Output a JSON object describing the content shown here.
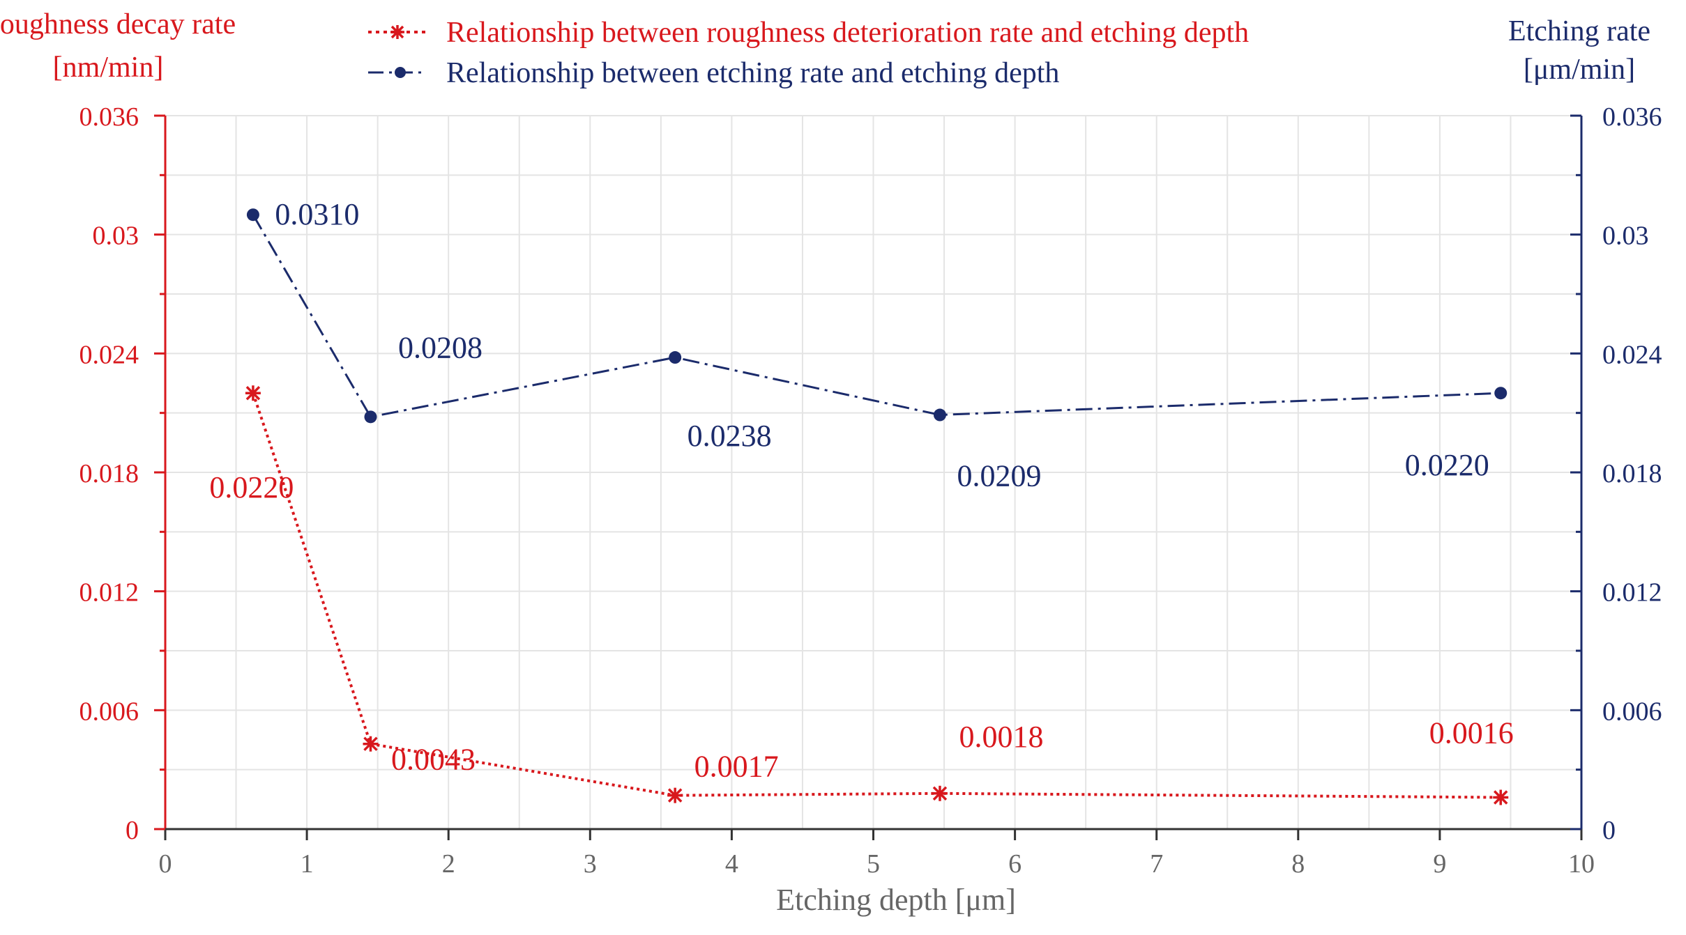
{
  "chart_data": {
    "type": "line",
    "xlabel": "Etching depth [μm]",
    "xlim": [
      0,
      10
    ],
    "x_ticks": [
      "0",
      "1",
      "2",
      "3",
      "4",
      "5",
      "6",
      "7",
      "8",
      "9",
      "10"
    ],
    "y_left": {
      "label_line1": "Roughness decay rate",
      "label_line2": "[nm/min]",
      "lim": [
        0,
        0.036
      ],
      "ticks": [
        "0",
        "0.006",
        "0.012",
        "0.018",
        "0.024",
        "0.03",
        "0.036"
      ]
    },
    "y_right": {
      "label_line1": "Etching rate",
      "label_line2": "[μm/min]",
      "lim": [
        0,
        0.036
      ],
      "ticks": [
        "0",
        "0.006",
        "0.012",
        "0.018",
        "0.024",
        "0.03",
        "0.036"
      ]
    },
    "grid": true,
    "legend_position": "top-center",
    "series": [
      {
        "name": "Relationship between roughness deterioration rate and etching depth",
        "axis": "left",
        "color": "#d8181d",
        "marker": "asterisk",
        "line_style": "dotted",
        "x": [
          0.62,
          1.45,
          3.6,
          5.47,
          9.43
        ],
        "y": [
          0.022,
          0.0043,
          0.0017,
          0.0018,
          0.0016
        ],
        "labels": [
          "0.0220",
          "0.0043",
          "0.0017",
          "0.0018",
          "0.0016"
        ]
      },
      {
        "name": "Relationship between etching rate and etching depth",
        "axis": "right",
        "color": "#1b2b6b",
        "marker": "dot",
        "line_style": "dashdot",
        "x": [
          0.62,
          1.45,
          3.6,
          5.47,
          9.43
        ],
        "y": [
          0.031,
          0.0208,
          0.0238,
          0.0209,
          0.022
        ],
        "labels": [
          "0.0310",
          "0.0208",
          "0.0238",
          "0.0209",
          "0.0220"
        ]
      }
    ]
  }
}
